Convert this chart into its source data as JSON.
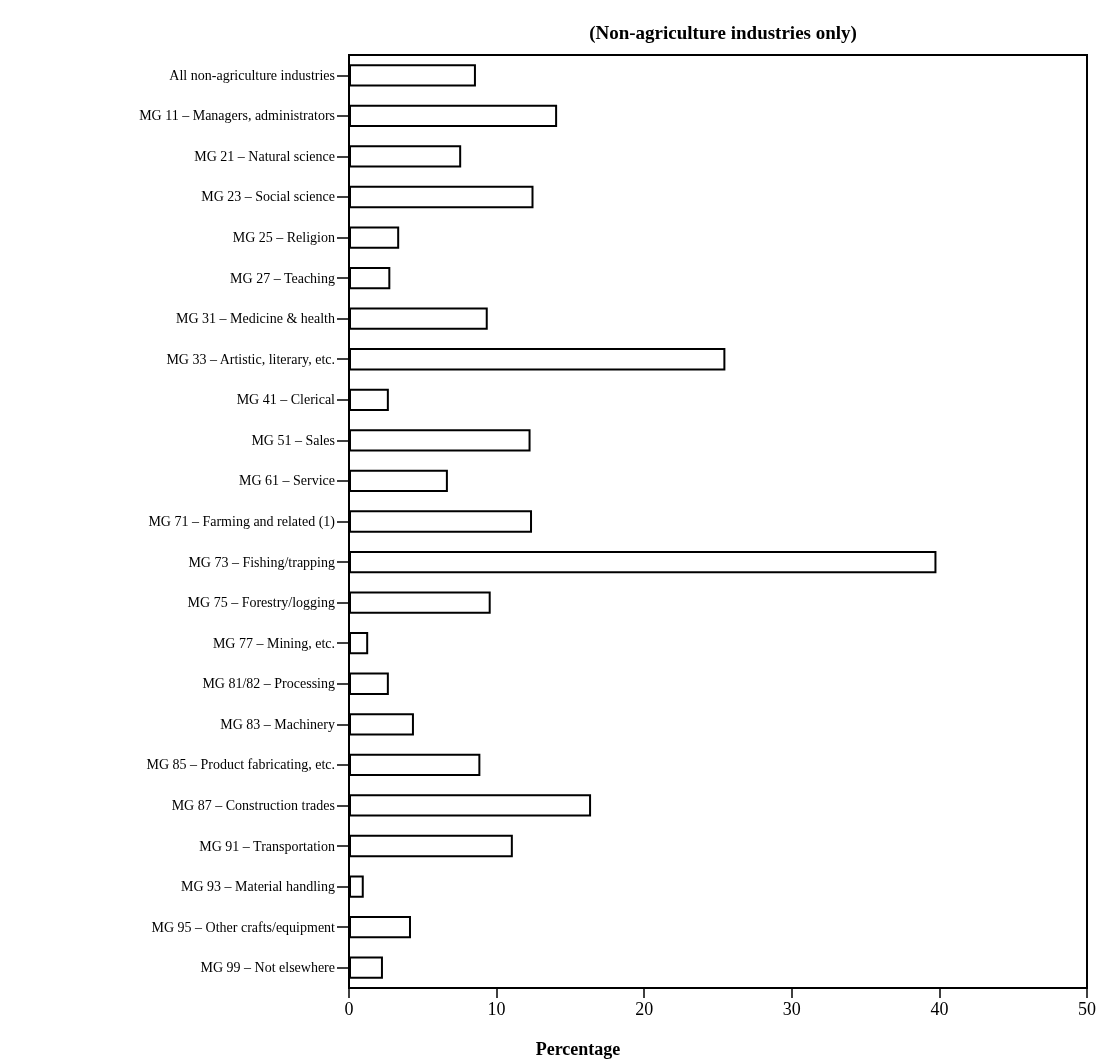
{
  "chart_data": {
    "type": "bar",
    "orientation": "horizontal",
    "title": "(Non-agriculture industries only)",
    "xlabel": "Percentage",
    "categories": [
      "All non-agriculture industries",
      "MG 11 – Managers, administrators",
      "MG 21 – Natural science",
      "MG 23 – Social science",
      "MG 25 – Religion",
      "MG 27 – Teaching",
      "MG 31 – Medicine & health",
      "MG 33 – Artistic, literary, etc.",
      "MG 41 – Clerical",
      "MG 51 – Sales",
      "MG 61 – Service",
      "MG 71 – Farming and related (1)",
      "MG 73 – Fishing/trapping",
      "MG 75 – Forestry/logging",
      "MG 77 – Mining, etc.",
      "MG 81/82 – Processing",
      "MG 83 – Machinery",
      "MG 85 – Product fabricating, etc.",
      "MG 87 – Construction trades",
      "MG 91 – Transportation",
      "MG 93 – Material handling",
      "MG 95 – Other crafts/equipment",
      "MG 99 – Not elsewhere"
    ],
    "values": [
      8.6,
      14.1,
      7.6,
      12.5,
      3.4,
      2.8,
      9.4,
      25.5,
      2.7,
      12.3,
      6.7,
      12.4,
      39.8,
      9.6,
      1.3,
      2.7,
      4.4,
      8.9,
      16.4,
      11.1,
      1.0,
      4.2,
      2.3
    ],
    "color": "#ffffff",
    "xlim": [
      0,
      50
    ],
    "xticks": [
      0,
      10,
      20,
      30,
      40,
      50
    ],
    "grid": false
  }
}
